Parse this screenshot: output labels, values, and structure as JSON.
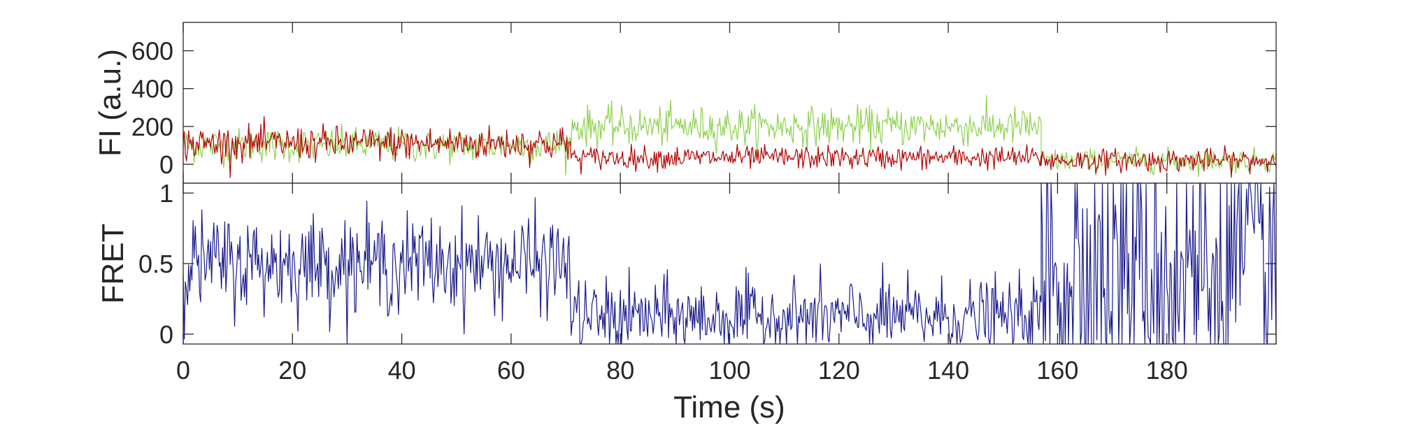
{
  "chart_data": [
    {
      "type": "line",
      "ylabel": "FI (a.u.)",
      "xlim": [
        0,
        200
      ],
      "ylim": [
        -100,
        750
      ],
      "yticks": [
        0,
        200,
        400,
        600
      ],
      "grid": false,
      "colors": {
        "donor": "#8fd14f",
        "acceptor": "#b30000"
      },
      "series": [
        {
          "color": "#8fd14f",
          "segments": [
            {
              "x": [
                0,
                71
              ],
              "level": 100,
              "noise_sd": 45
            },
            {
              "x": [
                71,
                157
              ],
              "level": 200,
              "noise_sd": 50
            },
            {
              "x": [
                157,
                200
              ],
              "level": 20,
              "noise_sd": 30
            }
          ]
        },
        {
          "color": "#b30000",
          "segments": [
            {
              "x": [
                0,
                71
              ],
              "level": 110,
              "noise_sd": 45
            },
            {
              "x": [
                71,
                157
              ],
              "level": 35,
              "noise_sd": 30
            },
            {
              "x": [
                157,
                200
              ],
              "level": 20,
              "noise_sd": 30
            }
          ]
        }
      ]
    },
    {
      "type": "line",
      "ylabel": "FRET",
      "xlabel": "Time (s)",
      "xlim": [
        0,
        200
      ],
      "ylim": [
        -0.07,
        1.07
      ],
      "yticks": [
        0,
        0.5,
        1
      ],
      "xticks": [
        0,
        20,
        40,
        60,
        80,
        100,
        120,
        140,
        160,
        180
      ],
      "grid": false,
      "series": [
        {
          "color": "#1a1a8c",
          "segments": [
            {
              "x": [
                0,
                71
              ],
              "level": 0.5,
              "noise_sd": 0.17
            },
            {
              "x": [
                71,
                157
              ],
              "level": 0.12,
              "noise_sd": 0.13
            },
            {
              "x": [
                157,
                200
              ],
              "level": 0.45,
              "noise_sd": 0.6
            }
          ]
        }
      ]
    }
  ]
}
